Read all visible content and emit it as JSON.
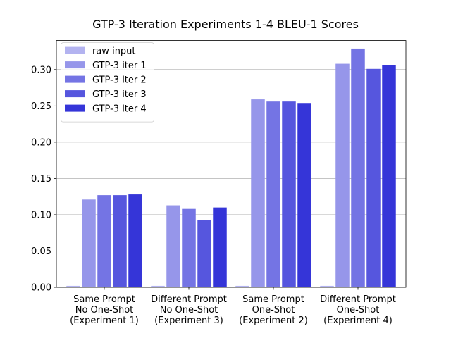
{
  "chart_data": {
    "type": "bar",
    "title": "GTP-3 Iteration Experiments 1-4 BLEU-1 Scores",
    "xlabel": "",
    "ylabel": "",
    "ylim": [
      0,
      0.34
    ],
    "yticks": [
      "0.00",
      "0.05",
      "0.10",
      "0.15",
      "0.20",
      "0.25",
      "0.30"
    ],
    "grid": "horizontal",
    "legend_position": "top-left",
    "categories": [
      [
        "Same Prompt",
        "No One-Shot",
        "(Experiment 1)"
      ],
      [
        "Different Prompt",
        "No One-Shot",
        "(Experiment 3)"
      ],
      [
        "Same Prompt",
        "One-Shot",
        "(Experiment 2)"
      ],
      [
        "Different Prompt",
        "One-Shot",
        "(Experiment 4)"
      ]
    ],
    "series": [
      {
        "name": "raw input",
        "color": "#b3b3f0",
        "values": [
          0.002,
          0.002,
          0.002,
          0.002
        ]
      },
      {
        "name": "GTP-3 iter 1",
        "color": "#9696ea",
        "values": [
          0.121,
          0.113,
          0.259,
          0.308
        ]
      },
      {
        "name": "GTP-3 iter 2",
        "color": "#7474e4",
        "values": [
          0.127,
          0.108,
          0.256,
          0.329
        ]
      },
      {
        "name": "GTP-3 iter 3",
        "color": "#5656de",
        "values": [
          0.127,
          0.093,
          0.256,
          0.301
        ]
      },
      {
        "name": "GTP-3 iter 4",
        "color": "#3535d8",
        "values": [
          0.128,
          0.11,
          0.254,
          0.306
        ]
      }
    ]
  }
}
